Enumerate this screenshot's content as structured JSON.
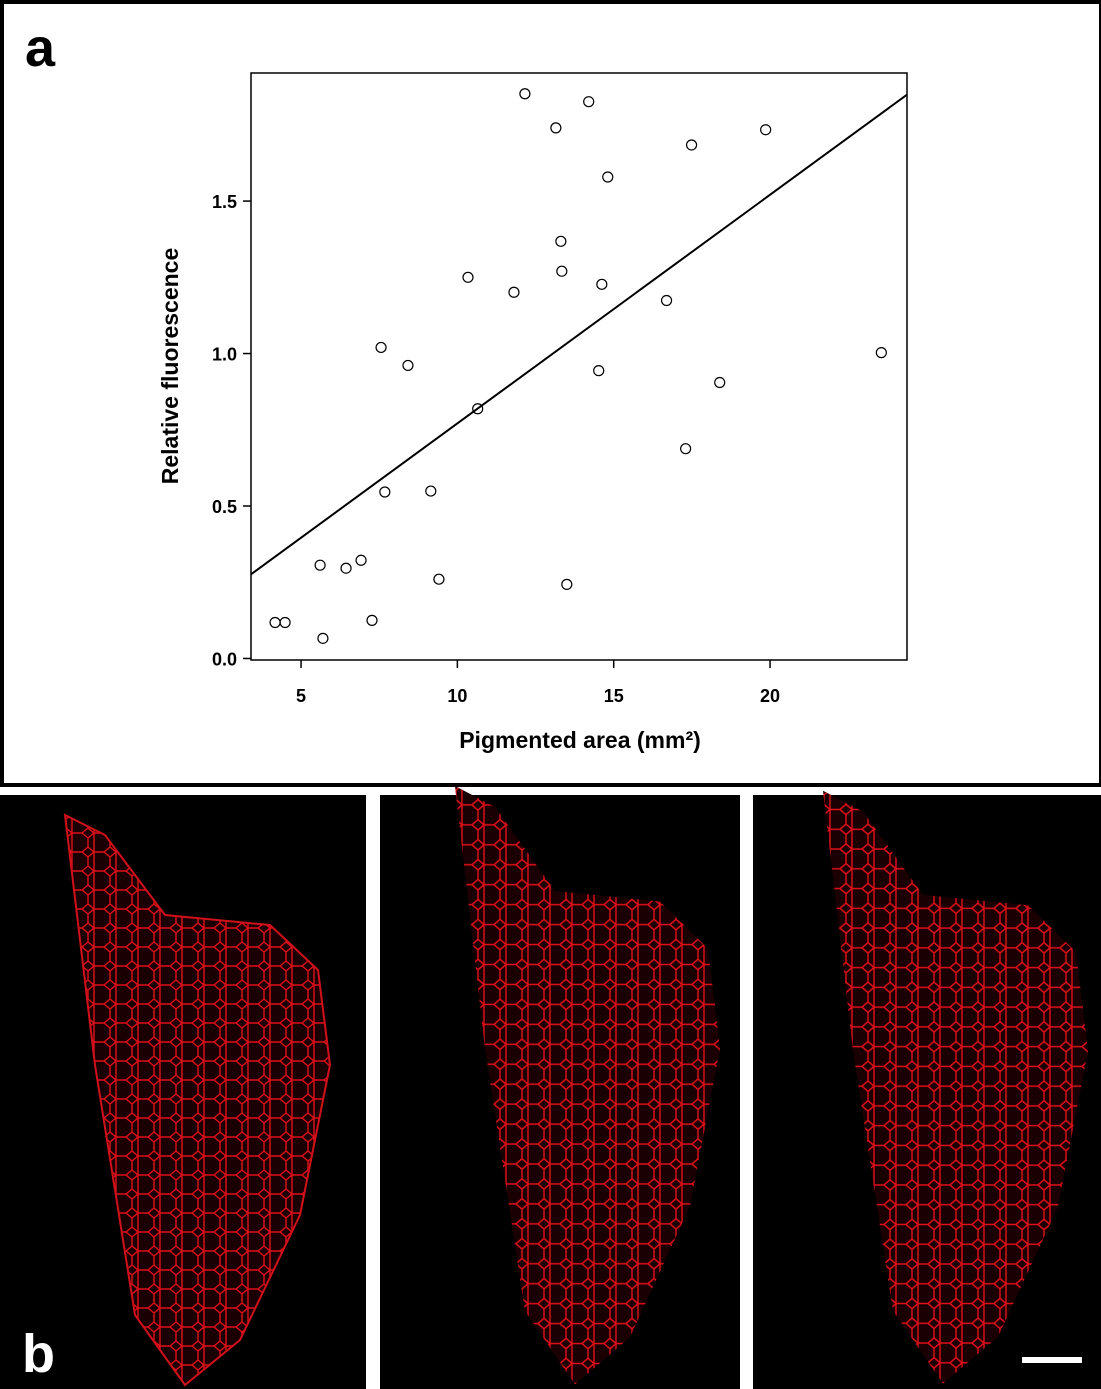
{
  "figure": {
    "panel_labels": [
      "a",
      "b"
    ]
  },
  "chart_data": {
    "type": "scatter",
    "xlabel": "Pigmented area (mm²)",
    "ylabel": "Relative fluorescence",
    "x": [
      4.17,
      4.49,
      5.61,
      5.7,
      6.44,
      6.92,
      7.27,
      7.56,
      7.68,
      8.42,
      9.15,
      9.41,
      10.34,
      10.65,
      11.81,
      12.16,
      13.15,
      13.31,
      13.34,
      13.5,
      14.2,
      14.52,
      14.62,
      14.81,
      16.69,
      17.3,
      17.49,
      18.39,
      19.86,
      23.56
    ],
    "values": [
      0.118,
      0.118,
      0.306,
      0.066,
      0.296,
      0.322,
      0.125,
      1.02,
      0.546,
      0.961,
      0.549,
      0.26,
      1.25,
      0.819,
      1.201,
      1.852,
      1.74,
      1.368,
      1.27,
      0.243,
      1.826,
      0.944,
      1.227,
      1.579,
      1.174,
      0.688,
      1.684,
      0.905,
      1.734,
      1.003
    ],
    "trend_line": {
      "x": [
        3.4,
        24.38
      ],
      "y": [
        0.276,
        1.849
      ]
    },
    "xlim": [
      3.4,
      24.38
    ],
    "ylim": [
      -0.005,
      1.92
    ],
    "xticks": [
      5,
      10,
      15,
      20
    ],
    "yticks": [
      {
        "value": 0,
        "label": "0.0"
      },
      0.5,
      {
        "value": 1,
        "label": "1.0"
      },
      1.5
    ],
    "color": "#000000"
  }
}
